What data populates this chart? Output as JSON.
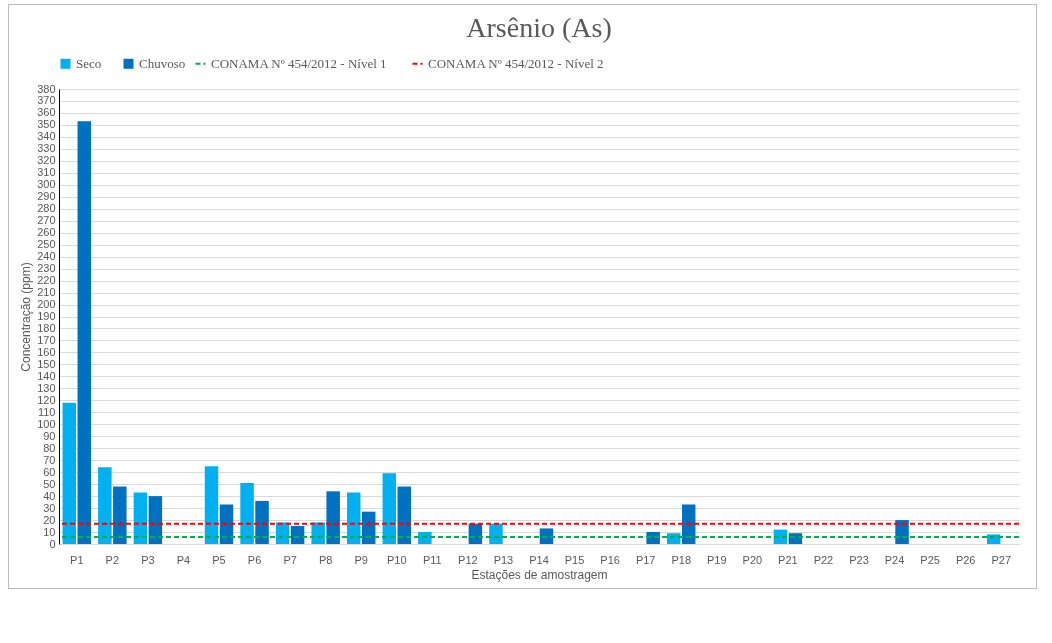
{
  "chart_data": {
    "type": "bar",
    "title": "Arsênio (As)",
    "xlabel": "Estações de amostragem",
    "ylabel": "Concentração (ppm)",
    "categories": [
      "P1",
      "P2",
      "P3",
      "P4",
      "P5",
      "P6",
      "P7",
      "P8",
      "P9",
      "P10",
      "P11",
      "P12",
      "P13",
      "P14",
      "P15",
      "P16",
      "P17",
      "P18",
      "P19",
      "P20",
      "P21",
      "P22",
      "P23",
      "P24",
      "P25",
      "P26",
      "P27"
    ],
    "series": [
      {
        "name": "Seco",
        "color": "#00b0f0",
        "values": [
          118,
          64,
          43,
          null,
          65,
          51,
          18,
          18,
          43,
          59,
          10,
          null,
          17,
          null,
          null,
          null,
          null,
          9,
          null,
          null,
          12,
          null,
          null,
          null,
          null,
          null,
          8
        ]
      },
      {
        "name": "Chuvoso",
        "color": "#0070c0",
        "values": [
          353,
          48,
          40,
          null,
          33,
          36,
          15,
          44,
          27,
          48,
          null,
          17,
          null,
          13,
          null,
          null,
          10,
          33,
          null,
          null,
          9,
          null,
          null,
          20,
          null,
          null,
          null
        ]
      }
    ],
    "ref_lines": [
      {
        "axis": "y",
        "value": 5.9,
        "label": "CONAMA Nº 454/2012 - Nível 1",
        "color": "#00b050",
        "line_style": "dashed"
      },
      {
        "axis": "y",
        "value": 17,
        "label": "CONAMA Nº 454/2012 - Nível 2",
        "color": "#ff0000",
        "line_style": "dashed"
      }
    ],
    "ylim": [
      0,
      380
    ],
    "yticks": [
      0,
      10,
      20,
      30,
      40,
      50,
      60,
      70,
      80,
      90,
      100,
      110,
      120,
      130,
      140,
      150,
      160,
      170,
      180,
      190,
      200,
      210,
      220,
      230,
      240,
      250,
      260,
      270,
      280,
      290,
      300,
      310,
      320,
      330,
      340,
      350,
      360,
      370,
      380
    ],
    "grid": "y",
    "legend": "top"
  }
}
